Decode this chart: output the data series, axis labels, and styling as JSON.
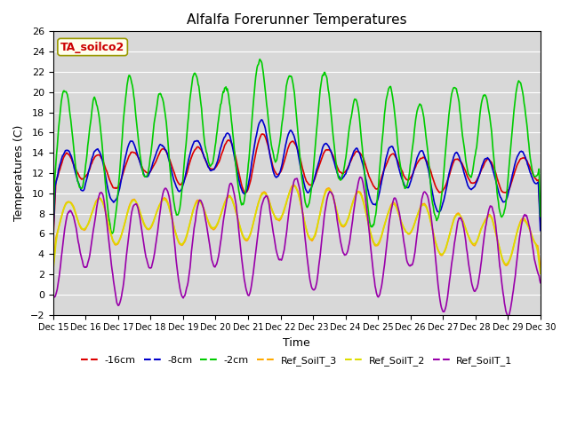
{
  "title": "Alfalfa Forerunner Temperatures",
  "xlabel": "Time",
  "ylabel": "Temperatures (C)",
  "annotation": "TA_soilco2",
  "annotation_color": "#cc0000",
  "annotation_bg": "#ffffee",
  "annotation_edge": "#999900",
  "ylim": [
    -2,
    26
  ],
  "xlim": [
    0,
    15
  ],
  "ytick_step": 2,
  "bg_color": "#d8d8d8",
  "grid_color": "white",
  "xtick_labels": [
    "Dec 15",
    "Dec 16",
    "Dec 17",
    "Dec 18",
    "Dec 19",
    "Dec 20",
    "Dec 21",
    "Dec 22",
    "Dec 23",
    "Dec 24",
    "Dec 25",
    "Dec 26",
    "Dec 27",
    "Dec 28",
    "Dec 29",
    "Dec 30"
  ],
  "legend_entries": [
    {
      "label": "-16cm",
      "color": "#dd0000"
    },
    {
      "label": "-8cm",
      "color": "#0000cc"
    },
    {
      "label": "-2cm",
      "color": "#00cc00"
    },
    {
      "label": "Ref_SoilT_3",
      "color": "#ffaa00"
    },
    {
      "label": "Ref_SoilT_2",
      "color": "#dddd00"
    },
    {
      "label": "Ref_SoilT_1",
      "color": "#9900aa"
    }
  ]
}
